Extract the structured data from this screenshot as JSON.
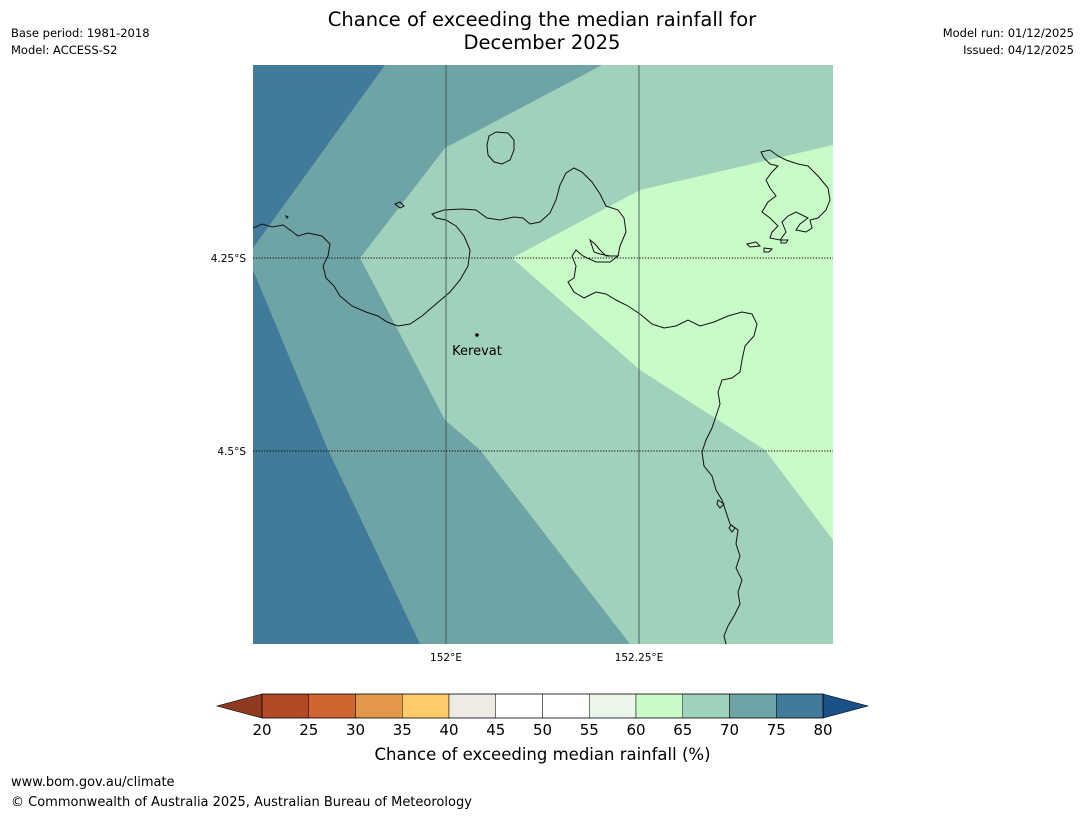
{
  "header": {
    "base_period": "Base period: 1981-2018",
    "model": "Model: ACCESS-S2",
    "title_line1": "Chance of exceeding the median rainfall for",
    "title_line2": "December 2025",
    "model_run": "Model run: 01/12/2025",
    "issued": "Issued: 04/12/2025"
  },
  "map": {
    "lat_labels": [
      "4.25°S",
      "4.5°S"
    ],
    "lon_labels": [
      "152°E",
      "152.25°E"
    ],
    "place_name": "Kerevat"
  },
  "colorbar": {
    "ticks": [
      "20",
      "25",
      "30",
      "35",
      "40",
      "45",
      "50",
      "55",
      "60",
      "65",
      "70",
      "75",
      "80"
    ],
    "colors": [
      "#b24a26",
      "#cf6632",
      "#e29848",
      "#fecb6a",
      "#eeeae4",
      "#ffffff",
      "#ffffff",
      "#e9f6e9",
      "#c9fbc9",
      "#9fd1bb",
      "#6fa4a6",
      "#417b99"
    ],
    "under_color": "#8f3b22",
    "over_color": "#1a5189",
    "label": "Chance of exceeding median rainfall (%)"
  },
  "footer": {
    "website": "www.bom.gov.au/climate",
    "copyright": "© Commonwealth of Australia 2025, Australian Bureau of Meteorology"
  }
}
